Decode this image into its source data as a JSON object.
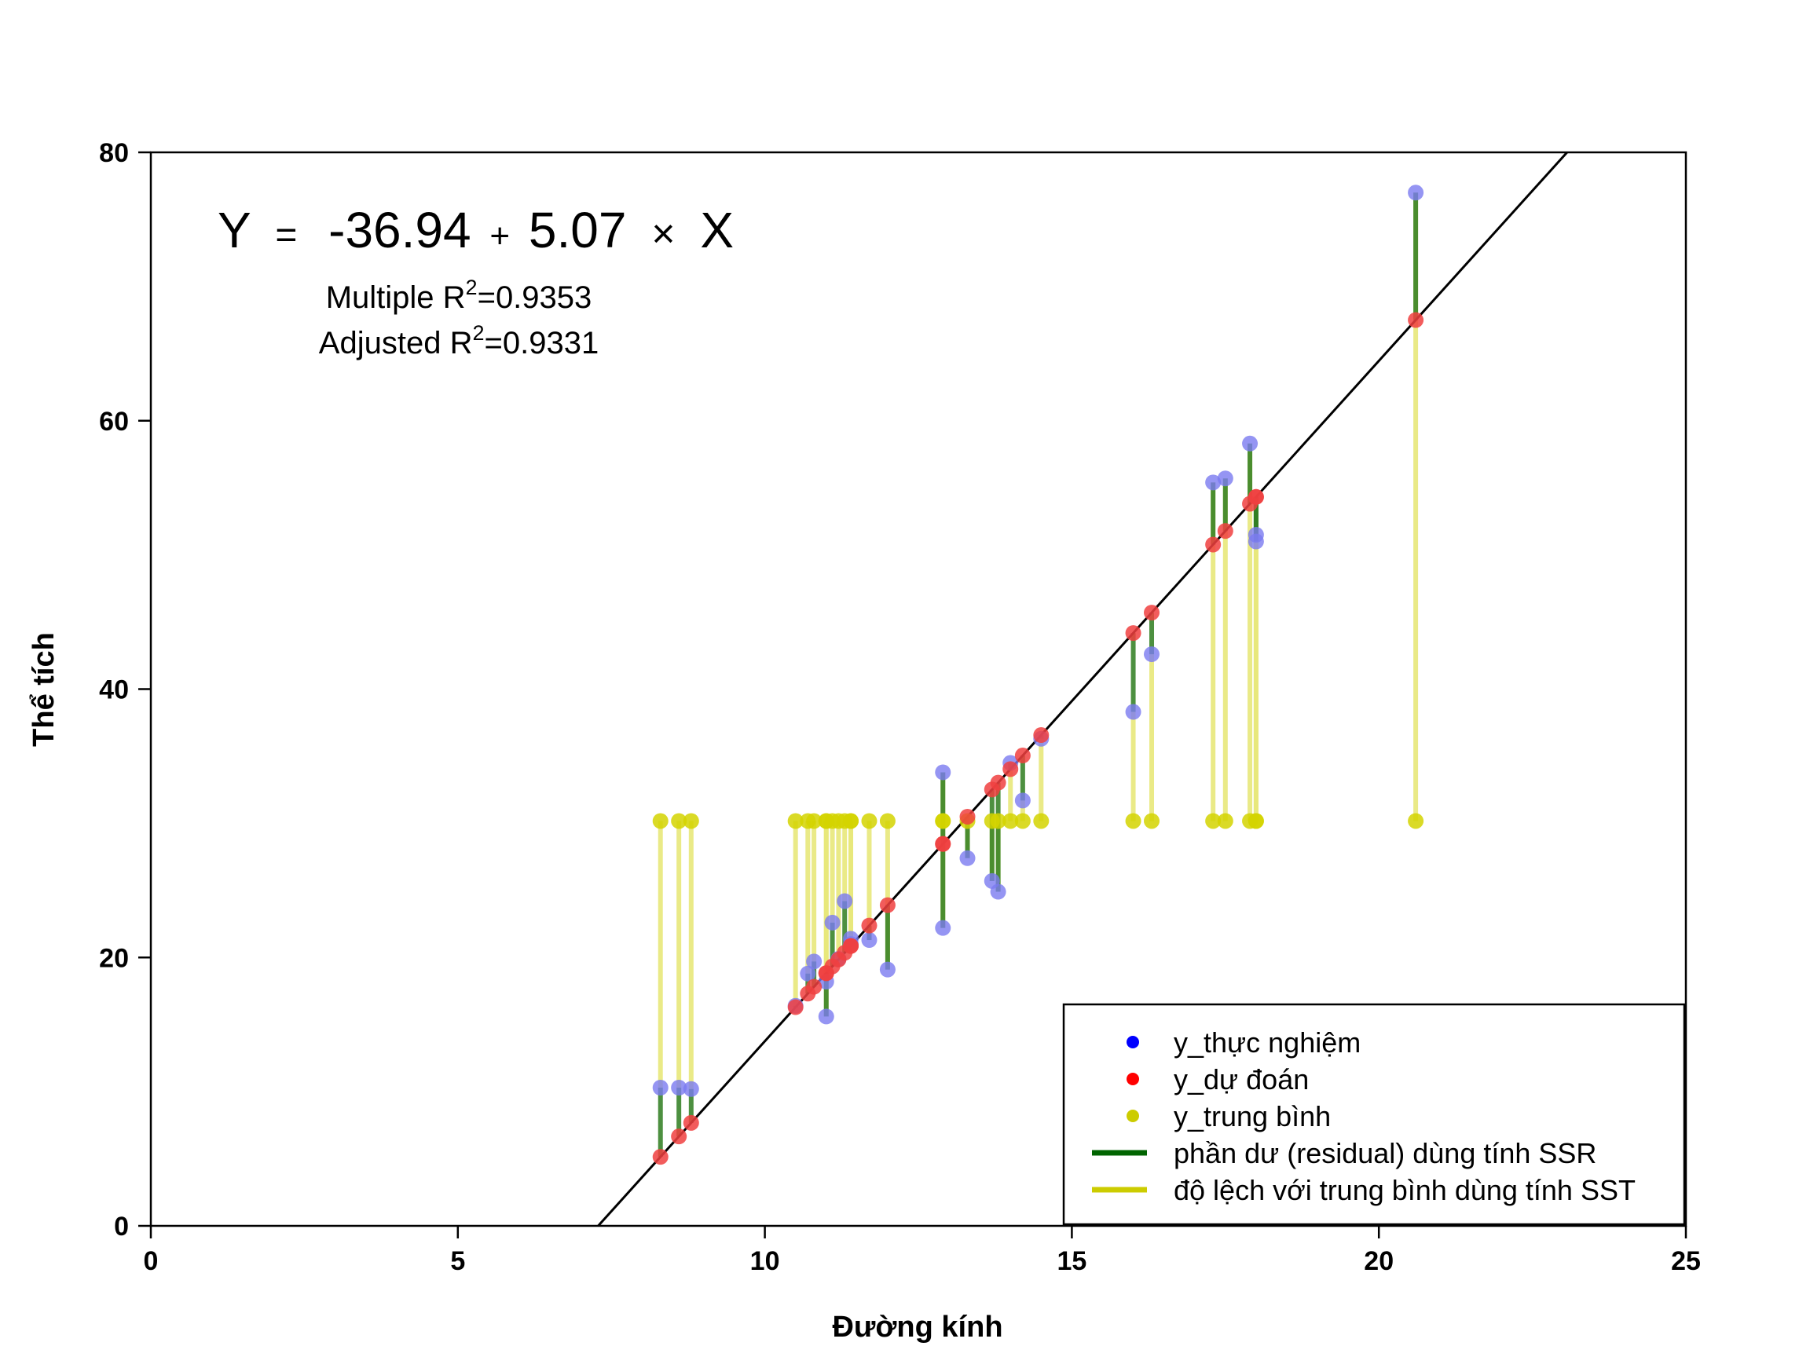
{
  "chart_data": {
    "type": "scatter",
    "xlabel": "Đường kính",
    "ylabel": "Thể tích",
    "xlim": [
      0,
      25
    ],
    "ylim": [
      0,
      80
    ],
    "xticks": [
      0,
      5,
      10,
      15,
      20,
      25
    ],
    "yticks": [
      0,
      20,
      40,
      60,
      80
    ],
    "grid": false,
    "legend_position": "bottom-right",
    "equation": {
      "y_symbol": "Y",
      "equals": "=",
      "intercept": "-36.94",
      "plus": "+",
      "slope": "5.07",
      "times": "×",
      "x_symbol": "X"
    },
    "r2_lines": [
      {
        "prefix": "Multiple R",
        "sup": "2",
        "suffix": "=0.9353"
      },
      {
        "prefix": "Adjusted R",
        "sup": "2",
        "suffix": "=0.9331"
      }
    ],
    "regression": {
      "intercept": -36.94,
      "slope": 5.07
    },
    "mean_y": 30.17,
    "colors": {
      "observed": "#7b7bf0",
      "predicted": "#f04040",
      "mean": "#d4d400",
      "residual": "#2e7d1f",
      "deviation": "#e8e87a",
      "fit_line": "#000000"
    },
    "series": [
      {
        "name": "y_thực nghiệm",
        "x": [
          8.3,
          8.6,
          8.8,
          10.5,
          10.7,
          10.8,
          11.0,
          11.0,
          11.1,
          11.2,
          11.3,
          11.4,
          11.4,
          11.7,
          12.0,
          12.9,
          12.9,
          13.3,
          13.7,
          13.8,
          14.0,
          14.2,
          14.5,
          16.0,
          16.3,
          17.3,
          17.5,
          17.9,
          18.0,
          18.0,
          20.6
        ],
        "y": [
          10.3,
          10.3,
          10.2,
          16.4,
          18.8,
          19.7,
          15.6,
          18.2,
          22.6,
          19.9,
          24.2,
          21.0,
          21.4,
          21.3,
          19.1,
          22.2,
          33.8,
          27.4,
          25.7,
          24.9,
          34.5,
          31.7,
          36.3,
          38.3,
          42.6,
          55.4,
          55.7,
          58.3,
          51.5,
          51.0,
          77.0
        ]
      },
      {
        "name": "y_dự đoán"
      },
      {
        "name": "y_trung bình"
      },
      {
        "name": "phần dư (residual) dùng tính SSR"
      },
      {
        "name": "độ lệch với trung bình dùng tính SST"
      }
    ]
  }
}
